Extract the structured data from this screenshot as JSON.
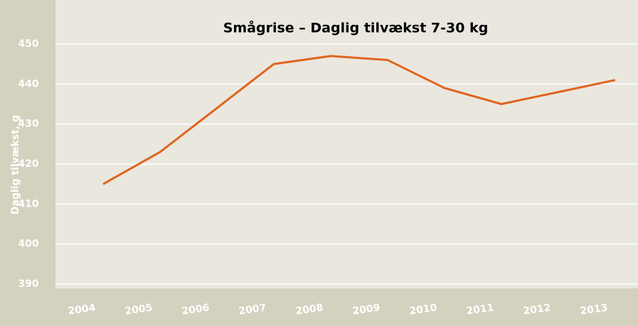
{
  "chart_data": {
    "type": "line",
    "title": "Smågrise – Daglig tilvækst 7-30 kg",
    "y_label": "Daglig tilvækst, g",
    "categories": [
      "2004",
      "2005",
      "2006",
      "2007",
      "2008",
      "2009",
      "2010",
      "2011",
      "2012",
      "2013"
    ],
    "series": [
      {
        "name": "Daglig tilvækst",
        "color": "#e0641e",
        "values": [
          415,
          423,
          434,
          445,
          447,
          446,
          439,
          435,
          438,
          441
        ]
      }
    ],
    "ylim": [
      390,
      450
    ],
    "yticks": [
      390,
      400,
      410,
      420,
      430,
      440,
      450
    ],
    "grid": true
  }
}
